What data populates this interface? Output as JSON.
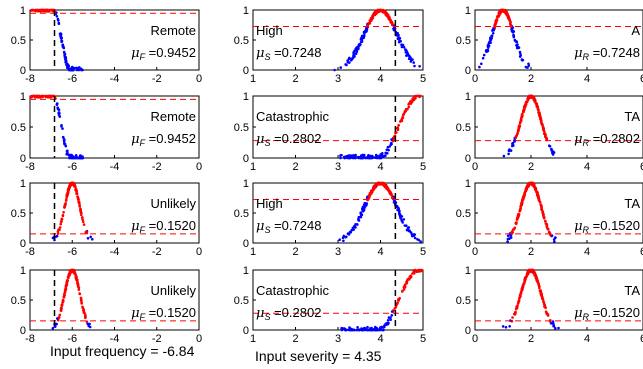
{
  "chart_data": {
    "type": "scatter",
    "grid": false,
    "columns": [
      {
        "variable": "frequency",
        "xlim": [
          -8,
          0
        ],
        "xticks": [
          "-8",
          "-6",
          "-4",
          "-2",
          "0"
        ],
        "input_value": -6.84,
        "caption": "Input frequency = -6.84"
      },
      {
        "variable": "severity",
        "xlim": [
          1,
          5
        ],
        "xticks": [
          "1",
          "2",
          "3",
          "4",
          "5"
        ],
        "input_value": 4.35,
        "caption": "Input severity = 4.35"
      },
      {
        "variable": "risk",
        "xlim": [
          0,
          6
        ],
        "xticks": [
          "0",
          "2",
          "4",
          "6"
        ],
        "caption": ""
      }
    ],
    "ylim": [
      0,
      1
    ],
    "yticks": [
      "0",
      "0.5",
      "1"
    ],
    "panels": [
      {
        "row": 0,
        "col": 0,
        "label": "Remote",
        "mu_symbol": "F",
        "mu_value": "=0.9452",
        "mu": 0.9452,
        "shape": "zleft",
        "a": -6.9,
        "b": -6.1,
        "points": 150
      },
      {
        "row": 0,
        "col": 1,
        "label": "High",
        "mu_symbol": "S",
        "mu_value": "=0.7248",
        "mu": 0.7248,
        "shape": "gauss",
        "c": 4.0,
        "s": 0.38,
        "points": 250
      },
      {
        "row": 0,
        "col": 2,
        "label": "A",
        "mu_symbol": "R",
        "mu_value": "=0.7248",
        "mu": 0.7248,
        "shape": "gauss",
        "c": 1.0,
        "s": 0.38,
        "points": 200
      },
      {
        "row": 1,
        "col": 0,
        "label": "Remote",
        "mu_symbol": "F",
        "mu_value": "=0.9452",
        "mu": 0.9452,
        "shape": "zleft",
        "a": -6.9,
        "b": -6.1,
        "points": 150
      },
      {
        "row": 1,
        "col": 1,
        "label": "Catastrophic",
        "mu_symbol": "S",
        "mu_value": "=0.2802",
        "mu": 0.2802,
        "shape": "sright",
        "a": 3.95,
        "b": 4.9,
        "points": 160
      },
      {
        "row": 1,
        "col": 2,
        "label": "TA",
        "mu_symbol": "R",
        "mu_value": "=0.2802",
        "mu": 0.2802,
        "shape": "gauss",
        "c": 2.0,
        "s": 0.36,
        "points": 220
      },
      {
        "row": 2,
        "col": 0,
        "label": "Unlikely",
        "mu_symbol": "F",
        "mu_value": "=0.1520",
        "mu": 0.152,
        "shape": "gauss",
        "c": -6.0,
        "s": 0.36,
        "points": 160
      },
      {
        "row": 2,
        "col": 1,
        "label": "High",
        "mu_symbol": "S",
        "mu_value": "=0.7248",
        "mu": 0.7248,
        "shape": "gauss",
        "c": 4.0,
        "s": 0.38,
        "points": 250
      },
      {
        "row": 2,
        "col": 2,
        "label": "TA",
        "mu_symbol": "R",
        "mu_value": "=0.1520",
        "mu": 0.152,
        "shape": "gauss",
        "c": 2.0,
        "s": 0.36,
        "points": 220
      },
      {
        "row": 3,
        "col": 0,
        "label": "Unlikely",
        "mu_symbol": "F",
        "mu_value": "=0.1520",
        "mu": 0.152,
        "shape": "gauss",
        "c": -6.0,
        "s": 0.36,
        "points": 160
      },
      {
        "row": 3,
        "col": 1,
        "label": "Catastrophic",
        "mu_symbol": "S",
        "mu_value": "=0.2802",
        "mu": 0.2802,
        "shape": "sright",
        "a": 3.95,
        "b": 4.9,
        "points": 160
      },
      {
        "row": 3,
        "col": 2,
        "label": "TA",
        "mu_symbol": "R",
        "mu_value": "=0.1520",
        "mu": 0.152,
        "shape": "gauss",
        "c": 2.0,
        "s": 0.36,
        "points": 220
      }
    ],
    "colors": {
      "activated": "#ff0000",
      "inactive": "#0000ff",
      "mu_line": "#ff0000",
      "input_line": "#000000",
      "axis": "#000000"
    }
  }
}
